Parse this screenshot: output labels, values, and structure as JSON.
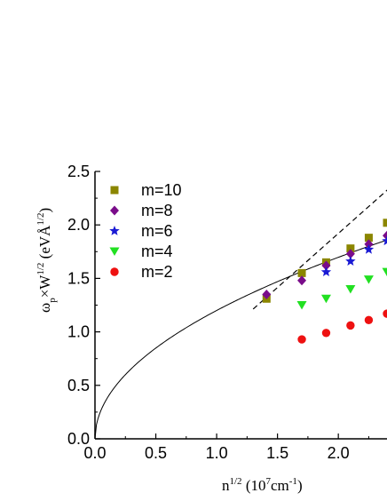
{
  "chart_data": {
    "type": "scatter",
    "title": "",
    "xlabel": "n^1/2 (10^7cm^-1)",
    "ylabel": "ωp×W^1/2 (eVÅ^1/2)",
    "xlim": [
      0.0,
      2.4
    ],
    "ylim": [
      0.0,
      2.5
    ],
    "xticks": [
      "0.0",
      "0.5",
      "1.0",
      "1.5",
      "2.0"
    ],
    "yticks": [
      "0.0",
      "0.5",
      "1.0",
      "1.5",
      "2.0",
      "2.5"
    ],
    "grid": false,
    "legend_position": "top-left",
    "series": [
      {
        "name": "m=10",
        "marker": "square",
        "color": "#8b8600",
        "x": [
          1.41,
          1.7,
          1.9,
          2.1,
          2.25,
          2.4
        ],
        "y": [
          1.31,
          1.55,
          1.65,
          1.78,
          1.88,
          2.02
        ]
      },
      {
        "name": "m=8",
        "marker": "diamond",
        "color": "#7a0c8a",
        "x": [
          1.41,
          1.7,
          1.9,
          2.1,
          2.25,
          2.4
        ],
        "y": [
          1.35,
          1.48,
          1.62,
          1.73,
          1.82,
          1.9
        ]
      },
      {
        "name": "m=6",
        "marker": "star",
        "color": "#1a1ad4",
        "x": [
          1.9,
          2.1,
          2.25,
          2.4
        ],
        "y": [
          1.56,
          1.66,
          1.77,
          1.85
        ]
      },
      {
        "name": "m=4",
        "marker": "triangle-down",
        "color": "#22e022",
        "x": [
          1.7,
          1.9,
          2.1,
          2.25,
          2.4
        ],
        "y": [
          1.25,
          1.31,
          1.4,
          1.49,
          1.56
        ]
      },
      {
        "name": "m=2",
        "marker": "circle",
        "color": "#ee1111",
        "x": [
          1.7,
          1.9,
          2.1,
          2.25,
          2.4
        ],
        "y": [
          0.93,
          0.99,
          1.06,
          1.11,
          1.17
        ]
      }
    ],
    "curves": [
      {
        "style": "solid",
        "function": "y = 1.2 * sqrt(x)",
        "x_range": [
          0.0,
          2.4
        ]
      },
      {
        "style": "dashed",
        "function": "y = 1.01 * x - 0.1",
        "x_range": [
          1.3,
          2.45
        ]
      }
    ]
  }
}
